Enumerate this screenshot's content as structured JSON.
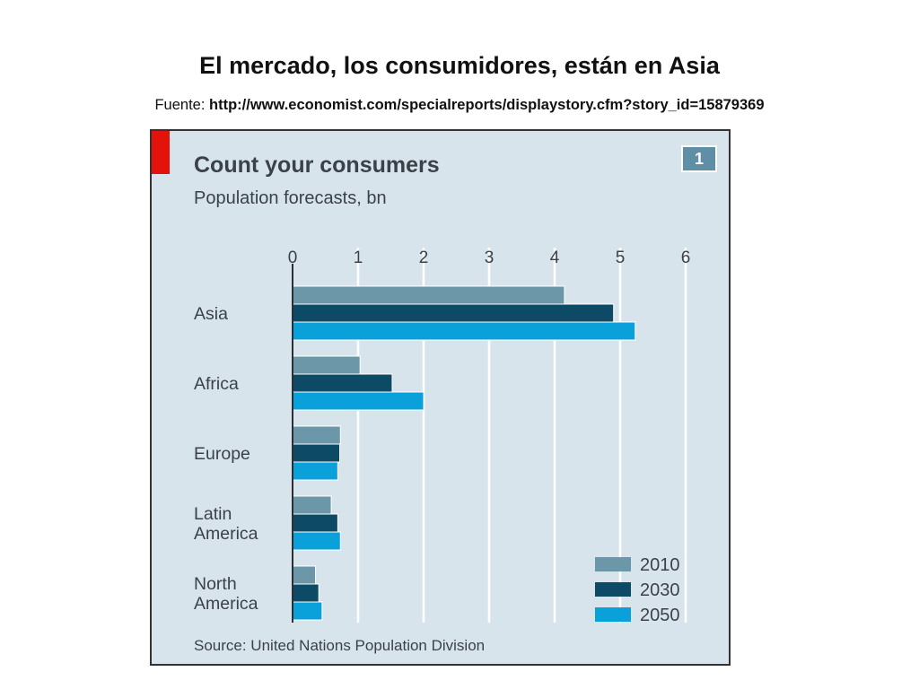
{
  "slide": {
    "title": "El mercado, los consumidores, están en Asia",
    "source_prefix": "Fuente: ",
    "source_url": "http://www.economist.com/specialreports/displaystory.cfm?story_id=15879369"
  },
  "panel": {
    "badge": "1",
    "accent_color": "#e3120b",
    "background_color": "#d8e4ec"
  },
  "chart_data": {
    "type": "bar",
    "orientation": "horizontal",
    "title": "Count your consumers",
    "subtitle": "Population forecasts, bn",
    "source": "Source: United Nations Population Division",
    "categories": [
      {
        "label": "Asia",
        "lines": [
          "Asia"
        ]
      },
      {
        "label": "Africa",
        "lines": [
          "Africa"
        ]
      },
      {
        "label": "Europe",
        "lines": [
          "Europe"
        ]
      },
      {
        "label": "Latin America",
        "lines": [
          "Latin",
          "America"
        ]
      },
      {
        "label": "North America",
        "lines": [
          "North",
          "America"
        ]
      }
    ],
    "series": [
      {
        "name": "2010",
        "color": "#6b97a8",
        "values": [
          4.15,
          1.03,
          0.73,
          0.59,
          0.35
        ]
      },
      {
        "name": "2030",
        "color": "#0d4a66",
        "values": [
          4.9,
          1.52,
          0.72,
          0.69,
          0.4
        ]
      },
      {
        "name": "2050",
        "color": "#0aa0da",
        "values": [
          5.23,
          2.0,
          0.69,
          0.73,
          0.45
        ]
      }
    ],
    "xlim": [
      0,
      6
    ],
    "xticks": [
      0,
      1,
      2,
      3,
      4,
      5,
      6
    ],
    "x_axis_position": "top",
    "grid": true,
    "legend_position": "bottom-right"
  }
}
